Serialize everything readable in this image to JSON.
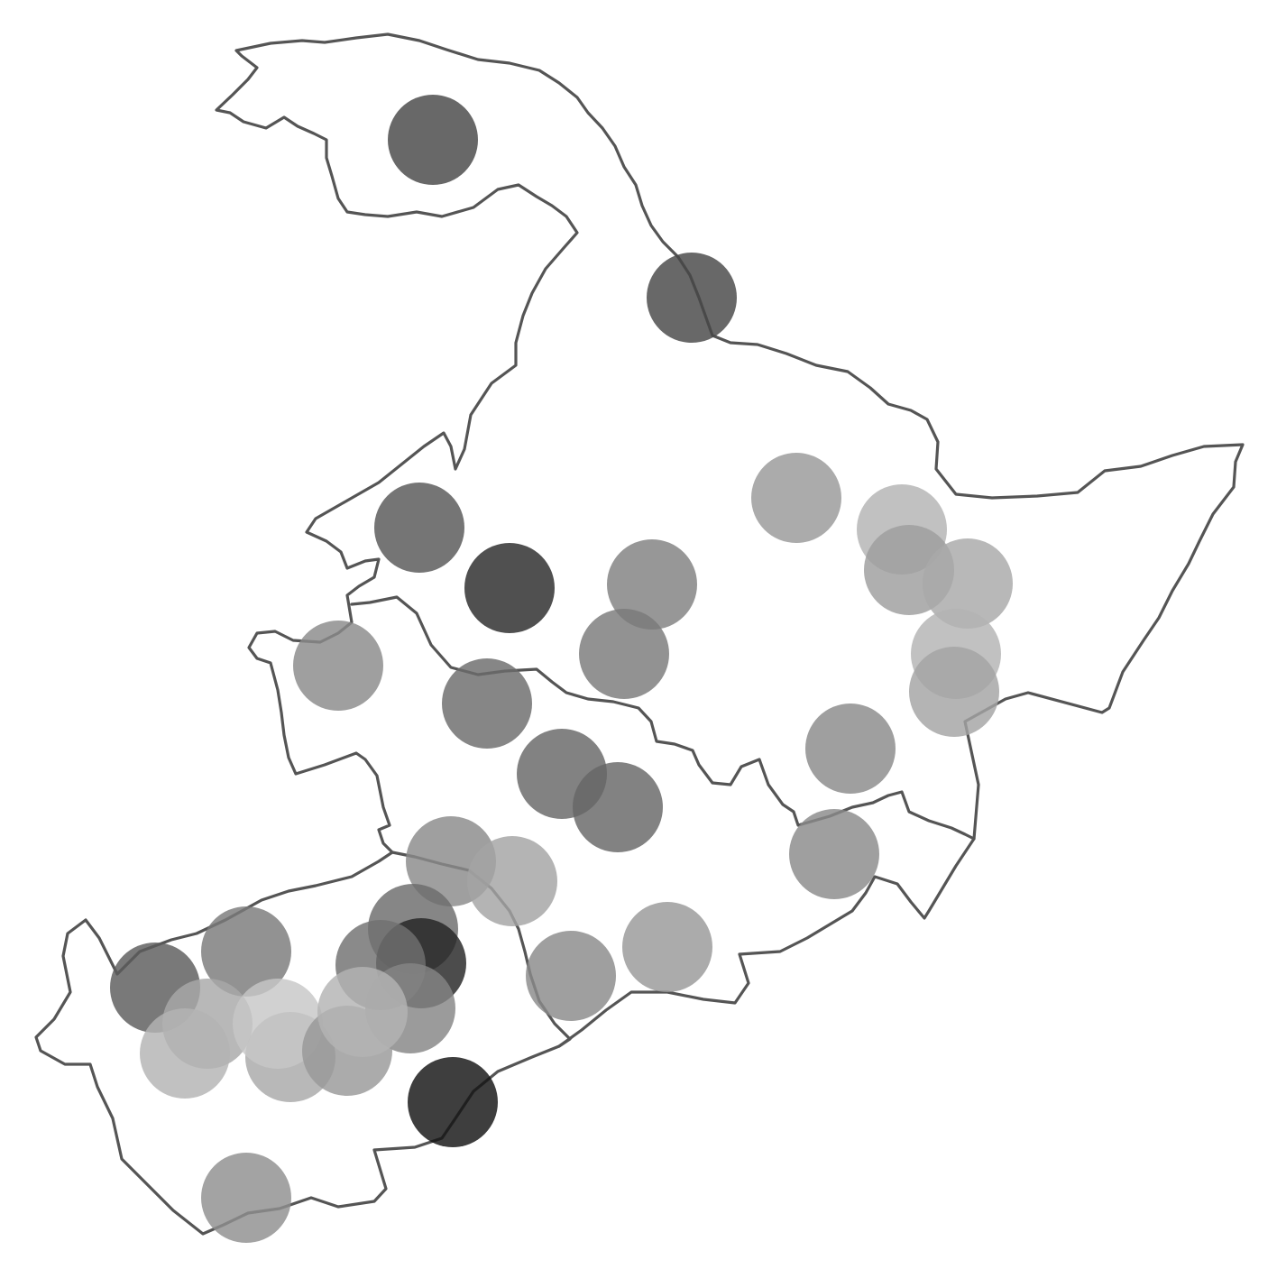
{
  "map": {
    "type": "proportional-symbol map",
    "background": "#ffffff",
    "boundary_color": "#555555",
    "legend": null,
    "title": "",
    "symbols": [
      {
        "value": 0.72,
        "label": ""
      },
      {
        "value": 0.72,
        "label": ""
      },
      {
        "value": 0.66,
        "label": ""
      },
      {
        "value": 0.84,
        "label": ""
      },
      {
        "value": 0.5,
        "label": ""
      },
      {
        "value": 0.52,
        "label": ""
      },
      {
        "value": 0.46,
        "label": ""
      },
      {
        "value": 0.58,
        "label": ""
      },
      {
        "value": 0.4,
        "label": ""
      },
      {
        "value": 0.3,
        "label": ""
      },
      {
        "value": 0.38,
        "label": ""
      },
      {
        "value": 0.34,
        "label": ""
      },
      {
        "value": 0.6,
        "label": ""
      },
      {
        "value": 0.6,
        "label": ""
      },
      {
        "value": 0.46,
        "label": ""
      },
      {
        "value": 0.3,
        "label": ""
      },
      {
        "value": 0.36,
        "label": ""
      },
      {
        "value": 0.46,
        "label": ""
      },
      {
        "value": 0.36,
        "label": ""
      },
      {
        "value": 0.46,
        "label": ""
      },
      {
        "value": 0.4,
        "label": ""
      },
      {
        "value": 0.46,
        "label": ""
      },
      {
        "value": 0.58,
        "label": ""
      },
      {
        "value": 0.86,
        "label": ""
      },
      {
        "value": 0.56,
        "label": ""
      },
      {
        "value": 0.48,
        "label": ""
      },
      {
        "value": 0.52,
        "label": ""
      },
      {
        "value": 0.64,
        "label": ""
      },
      {
        "value": 0.34,
        "label": ""
      },
      {
        "value": 0.3,
        "label": ""
      },
      {
        "value": 0.34,
        "label": ""
      },
      {
        "value": 0.22,
        "label": ""
      },
      {
        "value": 0.4,
        "label": ""
      },
      {
        "value": 0.3,
        "label": ""
      },
      {
        "value": 0.92,
        "label": ""
      },
      {
        "value": 0.44,
        "label": ""
      }
    ]
  }
}
